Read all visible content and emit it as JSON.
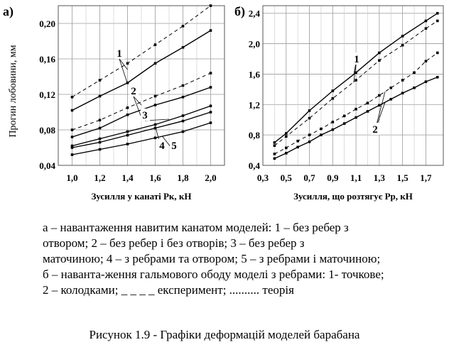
{
  "chart_data": [
    {
      "panel_label": "а)",
      "type": "line",
      "xlabel": "Зусилля у канаті Pк, кН",
      "ylabel": "Прогин лобовини, мм",
      "x_ticks": [
        "1,0",
        "1,2",
        "1,4",
        "1,6",
        "1,8",
        "2,0"
      ],
      "y_ticks": [
        "0,04",
        "0,08",
        "0,12",
        "0,16",
        "0,20"
      ],
      "xlim": [
        0.9,
        2.1
      ],
      "ylim": [
        0.04,
        0.22
      ],
      "grid": true,
      "x": [
        1.0,
        1.2,
        1.4,
        1.6,
        1.8,
        2.0
      ],
      "series": [
        {
          "name": "1",
          "style": "experiment",
          "values": [
            0.117,
            0.136,
            0.155,
            0.176,
            0.197,
            0.22
          ]
        },
        {
          "name": "1",
          "style": "theory",
          "values": [
            0.102,
            0.118,
            0.133,
            0.155,
            0.173,
            0.192
          ]
        },
        {
          "name": "2",
          "style": "experiment",
          "values": [
            0.08,
            0.091,
            0.105,
            0.118,
            0.13,
            0.144
          ]
        },
        {
          "name": "2",
          "style": "theory",
          "values": [
            0.072,
            0.082,
            0.097,
            0.108,
            0.117,
            0.128
          ]
        },
        {
          "name": "3",
          "style": "theory",
          "values": [
            0.062,
            0.07,
            0.078,
            0.086,
            0.096,
            0.107
          ]
        },
        {
          "name": "4",
          "style": "theory",
          "values": [
            0.06,
            0.066,
            0.074,
            0.082,
            0.09,
            0.1
          ]
        },
        {
          "name": "5",
          "style": "theory",
          "values": [
            0.052,
            0.058,
            0.064,
            0.071,
            0.078,
            0.088
          ]
        }
      ],
      "curve_labels": [
        "1",
        "2",
        "3",
        "4",
        "5"
      ]
    },
    {
      "panel_label": "б)",
      "type": "line",
      "xlabel": "Зусилля, що розтягує Pр, кН",
      "x_ticks": [
        "0,3",
        "0,5",
        "0,7",
        "0,9",
        "1,1",
        "1,3",
        "1,5",
        "1,7"
      ],
      "y_ticks": [
        "0,4",
        "0,8",
        "1,2",
        "1,6",
        "2,0",
        "2,4"
      ],
      "xlim": [
        0.3,
        1.85
      ],
      "ylim": [
        0.4,
        2.5
      ],
      "grid": true,
      "series": [
        {
          "name": "1",
          "style": "theory",
          "x": [
            0.4,
            0.5,
            0.7,
            0.9,
            1.1,
            1.3,
            1.5,
            1.7,
            1.8
          ],
          "values": [
            0.7,
            0.82,
            1.12,
            1.38,
            1.62,
            1.88,
            2.1,
            2.3,
            2.4
          ]
        },
        {
          "name": "1",
          "style": "experiment",
          "x": [
            0.4,
            0.5,
            0.7,
            0.9,
            1.1,
            1.3,
            1.5,
            1.7,
            1.8
          ],
          "values": [
            0.66,
            0.78,
            1.02,
            1.28,
            1.52,
            1.78,
            1.98,
            2.2,
            2.3
          ]
        },
        {
          "name": "2",
          "style": "experiment",
          "x": [
            0.4,
            0.5,
            0.6,
            0.7,
            0.8,
            0.9,
            1.0,
            1.1,
            1.2,
            1.3,
            1.4,
            1.5,
            1.6,
            1.7,
            1.8
          ],
          "values": [
            0.55,
            0.63,
            0.72,
            0.8,
            0.88,
            0.97,
            1.05,
            1.14,
            1.22,
            1.32,
            1.42,
            1.52,
            1.62,
            1.77,
            1.88
          ]
        },
        {
          "name": "2",
          "style": "theory",
          "x": [
            0.4,
            0.5,
            0.6,
            0.7,
            0.8,
            0.9,
            1.0,
            1.1,
            1.2,
            1.3,
            1.4,
            1.5,
            1.6,
            1.7,
            1.8
          ],
          "values": [
            0.49,
            0.56,
            0.64,
            0.71,
            0.8,
            0.87,
            0.95,
            1.03,
            1.11,
            1.19,
            1.27,
            1.35,
            1.42,
            1.5,
            1.56
          ]
        }
      ],
      "curve_labels": [
        "1",
        "2"
      ]
    }
  ],
  "caption": {
    "line1": "а – навантаження   навитим   канатом   моделей:  1 – без ребер з",
    "line2": "отвором;    2 – без   ребер і без   отворів;    3 – без   ребер   з",
    "line3": "маточиною; 4 – з ребрами та отвором; 5 – з ребрами і маточиною;",
    "line4": "б – наванта-ження гальмового ободу моделі з ребрами: 1- точкове;",
    "line5": "2 – колодками;  _ _ _ _  експеримент;  ..........  теорія"
  },
  "figure_title": "Рисунок 1.9 - Графіки деформацій моделей барабана"
}
